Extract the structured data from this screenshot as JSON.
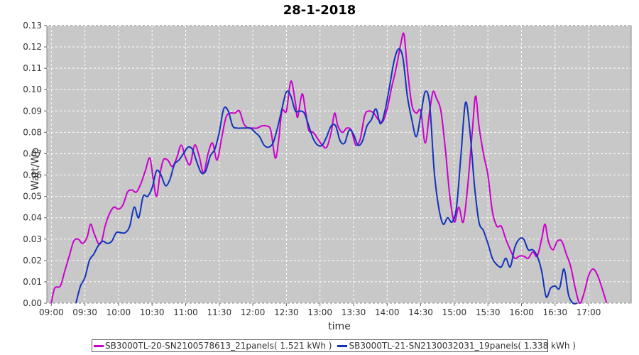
{
  "chart_data": {
    "type": "line",
    "title": "28-1-2018",
    "xlabel": "time",
    "ylabel": "Watt/Wp",
    "x_range": [
      "08:56",
      "17:38"
    ],
    "ylim": [
      0,
      0.13
    ],
    "x_ticks": [
      "09:00",
      "09:30",
      "10:00",
      "10:30",
      "11:00",
      "11:30",
      "12:00",
      "12:30",
      "13:00",
      "13:30",
      "14:00",
      "14:30",
      "15:00",
      "15:30",
      "16:00",
      "16:30",
      "17:00"
    ],
    "y_ticks": [
      "0.00",
      "0.01",
      "0.02",
      "0.03",
      "0.04",
      "0.05",
      "0.06",
      "0.07",
      "0.08",
      "0.09",
      "0.10",
      "0.11",
      "0.12",
      "0.13"
    ],
    "grid": true,
    "legend_position": "bottom",
    "series": [
      {
        "name": "SB3000TL-20-SN2100578613_21panels( 1.521 kWh )",
        "color": "#cc00cc",
        "points": [
          [
            "09:00",
            0.0
          ],
          [
            "09:03",
            0.007
          ],
          [
            "09:08",
            0.008
          ],
          [
            "09:12",
            0.015
          ],
          [
            "09:16",
            0.022
          ],
          [
            "09:20",
            0.029
          ],
          [
            "09:24",
            0.03
          ],
          [
            "09:28",
            0.028
          ],
          [
            "09:32",
            0.031
          ],
          [
            "09:35",
            0.037
          ],
          [
            "09:38",
            0.033
          ],
          [
            "09:42",
            0.028
          ],
          [
            "09:45",
            0.029
          ],
          [
            "09:48",
            0.036
          ],
          [
            "09:52",
            0.042
          ],
          [
            "09:56",
            0.045
          ],
          [
            "10:00",
            0.044
          ],
          [
            "10:04",
            0.046
          ],
          [
            "10:08",
            0.052
          ],
          [
            "10:12",
            0.053
          ],
          [
            "10:16",
            0.052
          ],
          [
            "10:20",
            0.056
          ],
          [
            "10:24",
            0.062
          ],
          [
            "10:28",
            0.068
          ],
          [
            "10:31",
            0.058
          ],
          [
            "10:34",
            0.05
          ],
          [
            "10:37",
            0.06
          ],
          [
            "10:40",
            0.067
          ],
          [
            "10:44",
            0.067
          ],
          [
            "10:48",
            0.064
          ],
          [
            "10:52",
            0.068
          ],
          [
            "10:56",
            0.074
          ],
          [
            "11:00",
            0.068
          ],
          [
            "11:04",
            0.065
          ],
          [
            "11:08",
            0.074
          ],
          [
            "11:12",
            0.069
          ],
          [
            "11:16",
            0.061
          ],
          [
            "11:20",
            0.07
          ],
          [
            "11:24",
            0.075
          ],
          [
            "11:28",
            0.067
          ],
          [
            "11:32",
            0.077
          ],
          [
            "11:36",
            0.087
          ],
          [
            "11:40",
            0.089
          ],
          [
            "11:44",
            0.089
          ],
          [
            "11:48",
            0.09
          ],
          [
            "11:52",
            0.084
          ],
          [
            "11:56",
            0.082
          ],
          [
            "12:00",
            0.082
          ],
          [
            "12:04",
            0.082
          ],
          [
            "12:08",
            0.083
          ],
          [
            "12:12",
            0.083
          ],
          [
            "12:16",
            0.081
          ],
          [
            "12:20",
            0.068
          ],
          [
            "12:23",
            0.076
          ],
          [
            "12:26",
            0.09
          ],
          [
            "12:30",
            0.09
          ],
          [
            "12:34",
            0.104
          ],
          [
            "12:38",
            0.094
          ],
          [
            "12:40",
            0.087
          ],
          [
            "12:44",
            0.098
          ],
          [
            "12:47",
            0.09
          ],
          [
            "12:50",
            0.081
          ],
          [
            "12:54",
            0.08
          ],
          [
            "12:58",
            0.077
          ],
          [
            "13:02",
            0.074
          ],
          [
            "13:06",
            0.073
          ],
          [
            "13:10",
            0.08
          ],
          [
            "13:13",
            0.089
          ],
          [
            "13:16",
            0.083
          ],
          [
            "13:20",
            0.08
          ],
          [
            "13:24",
            0.082
          ],
          [
            "13:28",
            0.081
          ],
          [
            "13:32",
            0.074
          ],
          [
            "13:36",
            0.077
          ],
          [
            "13:40",
            0.088
          ],
          [
            "13:44",
            0.09
          ],
          [
            "13:48",
            0.089
          ],
          [
            "13:52",
            0.086
          ],
          [
            "13:56",
            0.085
          ],
          [
            "14:00",
            0.091
          ],
          [
            "14:04",
            0.101
          ],
          [
            "14:08",
            0.11
          ],
          [
            "14:12",
            0.121
          ],
          [
            "14:15",
            0.126
          ],
          [
            "14:18",
            0.11
          ],
          [
            "14:22",
            0.093
          ],
          [
            "14:26",
            0.089
          ],
          [
            "14:30",
            0.09
          ],
          [
            "14:34",
            0.075
          ],
          [
            "14:38",
            0.09
          ],
          [
            "14:41",
            0.099
          ],
          [
            "14:44",
            0.096
          ],
          [
            "14:48",
            0.09
          ],
          [
            "14:52",
            0.072
          ],
          [
            "14:56",
            0.05
          ],
          [
            "15:00",
            0.038
          ],
          [
            "15:04",
            0.045
          ],
          [
            "15:08",
            0.038
          ],
          [
            "15:12",
            0.055
          ],
          [
            "15:16",
            0.08
          ],
          [
            "15:19",
            0.097
          ],
          [
            "15:22",
            0.083
          ],
          [
            "15:26",
            0.07
          ],
          [
            "15:30",
            0.06
          ],
          [
            "15:34",
            0.043
          ],
          [
            "15:38",
            0.036
          ],
          [
            "15:42",
            0.036
          ],
          [
            "15:46",
            0.03
          ],
          [
            "15:50",
            0.025
          ],
          [
            "15:54",
            0.021
          ],
          [
            "15:58",
            0.022
          ],
          [
            "16:02",
            0.022
          ],
          [
            "16:06",
            0.021
          ],
          [
            "16:10",
            0.024
          ],
          [
            "16:14",
            0.022
          ],
          [
            "16:18",
            0.03
          ],
          [
            "16:21",
            0.037
          ],
          [
            "16:24",
            0.029
          ],
          [
            "16:28",
            0.025
          ],
          [
            "16:32",
            0.029
          ],
          [
            "16:36",
            0.029
          ],
          [
            "16:40",
            0.023
          ],
          [
            "16:44",
            0.017
          ],
          [
            "16:48",
            0.007
          ],
          [
            "16:52",
            0.0
          ],
          [
            "16:56",
            0.005
          ],
          [
            "17:00",
            0.013
          ],
          [
            "17:04",
            0.016
          ],
          [
            "17:08",
            0.013
          ],
          [
            "17:12",
            0.007
          ],
          [
            "17:16",
            0.0
          ]
        ]
      },
      {
        "name": "SB3000TL-21-SN2130032031_19panels( 1.338 kWh )",
        "color": "#1133bb",
        "points": [
          [
            "09:22",
            0.0
          ],
          [
            "09:26",
            0.008
          ],
          [
            "09:30",
            0.012
          ],
          [
            "09:34",
            0.02
          ],
          [
            "09:38",
            0.023
          ],
          [
            "09:42",
            0.027
          ],
          [
            "09:46",
            0.029
          ],
          [
            "09:50",
            0.028
          ],
          [
            "09:54",
            0.029
          ],
          [
            "09:58",
            0.033
          ],
          [
            "10:02",
            0.033
          ],
          [
            "10:06",
            0.033
          ],
          [
            "10:10",
            0.036
          ],
          [
            "10:14",
            0.045
          ],
          [
            "10:18",
            0.04
          ],
          [
            "10:22",
            0.05
          ],
          [
            "10:26",
            0.05
          ],
          [
            "10:30",
            0.054
          ],
          [
            "10:34",
            0.062
          ],
          [
            "10:38",
            0.06
          ],
          [
            "10:42",
            0.055
          ],
          [
            "10:46",
            0.058
          ],
          [
            "10:50",
            0.065
          ],
          [
            "10:54",
            0.067
          ],
          [
            "10:58",
            0.07
          ],
          [
            "11:02",
            0.073
          ],
          [
            "11:06",
            0.072
          ],
          [
            "11:10",
            0.066
          ],
          [
            "11:14",
            0.061
          ],
          [
            "11:18",
            0.062
          ],
          [
            "11:22",
            0.069
          ],
          [
            "11:26",
            0.072
          ],
          [
            "11:30",
            0.08
          ],
          [
            "11:34",
            0.091
          ],
          [
            "11:38",
            0.09
          ],
          [
            "11:42",
            0.083
          ],
          [
            "11:46",
            0.082
          ],
          [
            "11:50",
            0.082
          ],
          [
            "11:54",
            0.082
          ],
          [
            "11:58",
            0.082
          ],
          [
            "12:02",
            0.08
          ],
          [
            "12:06",
            0.078
          ],
          [
            "12:10",
            0.074
          ],
          [
            "12:14",
            0.073
          ],
          [
            "12:18",
            0.075
          ],
          [
            "12:22",
            0.082
          ],
          [
            "12:26",
            0.091
          ],
          [
            "12:30",
            0.099
          ],
          [
            "12:34",
            0.097
          ],
          [
            "12:38",
            0.09
          ],
          [
            "12:42",
            0.09
          ],
          [
            "12:46",
            0.089
          ],
          [
            "12:50",
            0.083
          ],
          [
            "12:54",
            0.077
          ],
          [
            "12:58",
            0.074
          ],
          [
            "13:02",
            0.074
          ],
          [
            "13:06",
            0.078
          ],
          [
            "13:10",
            0.083
          ],
          [
            "13:14",
            0.083
          ],
          [
            "13:18",
            0.076
          ],
          [
            "13:22",
            0.075
          ],
          [
            "13:26",
            0.081
          ],
          [
            "13:30",
            0.079
          ],
          [
            "13:34",
            0.074
          ],
          [
            "13:38",
            0.076
          ],
          [
            "13:42",
            0.083
          ],
          [
            "13:46",
            0.086
          ],
          [
            "13:50",
            0.091
          ],
          [
            "13:54",
            0.084
          ],
          [
            "13:58",
            0.09
          ],
          [
            "14:02",
            0.101
          ],
          [
            "14:06",
            0.113
          ],
          [
            "14:10",
            0.119
          ],
          [
            "14:14",
            0.115
          ],
          [
            "14:18",
            0.097
          ],
          [
            "14:22",
            0.086
          ],
          [
            "14:26",
            0.078
          ],
          [
            "14:30",
            0.088
          ],
          [
            "14:34",
            0.099
          ],
          [
            "14:38",
            0.093
          ],
          [
            "14:42",
            0.062
          ],
          [
            "14:46",
            0.045
          ],
          [
            "14:50",
            0.037
          ],
          [
            "14:54",
            0.04
          ],
          [
            "14:58",
            0.038
          ],
          [
            "15:02",
            0.045
          ],
          [
            "15:06",
            0.07
          ],
          [
            "15:10",
            0.094
          ],
          [
            "15:14",
            0.08
          ],
          [
            "15:18",
            0.055
          ],
          [
            "15:22",
            0.038
          ],
          [
            "15:26",
            0.034
          ],
          [
            "15:30",
            0.028
          ],
          [
            "15:34",
            0.021
          ],
          [
            "15:38",
            0.018
          ],
          [
            "15:42",
            0.017
          ],
          [
            "15:46",
            0.021
          ],
          [
            "15:50",
            0.017
          ],
          [
            "15:54",
            0.026
          ],
          [
            "15:58",
            0.03
          ],
          [
            "16:02",
            0.03
          ],
          [
            "16:06",
            0.025
          ],
          [
            "16:10",
            0.025
          ],
          [
            "16:14",
            0.022
          ],
          [
            "16:18",
            0.015
          ],
          [
            "16:22",
            0.003
          ],
          [
            "16:26",
            0.007
          ],
          [
            "16:30",
            0.008
          ],
          [
            "16:34",
            0.007
          ],
          [
            "16:38",
            0.016
          ],
          [
            "16:42",
            0.004
          ],
          [
            "16:46",
            0.0
          ],
          [
            "16:50",
            0.0
          ]
        ]
      }
    ]
  }
}
